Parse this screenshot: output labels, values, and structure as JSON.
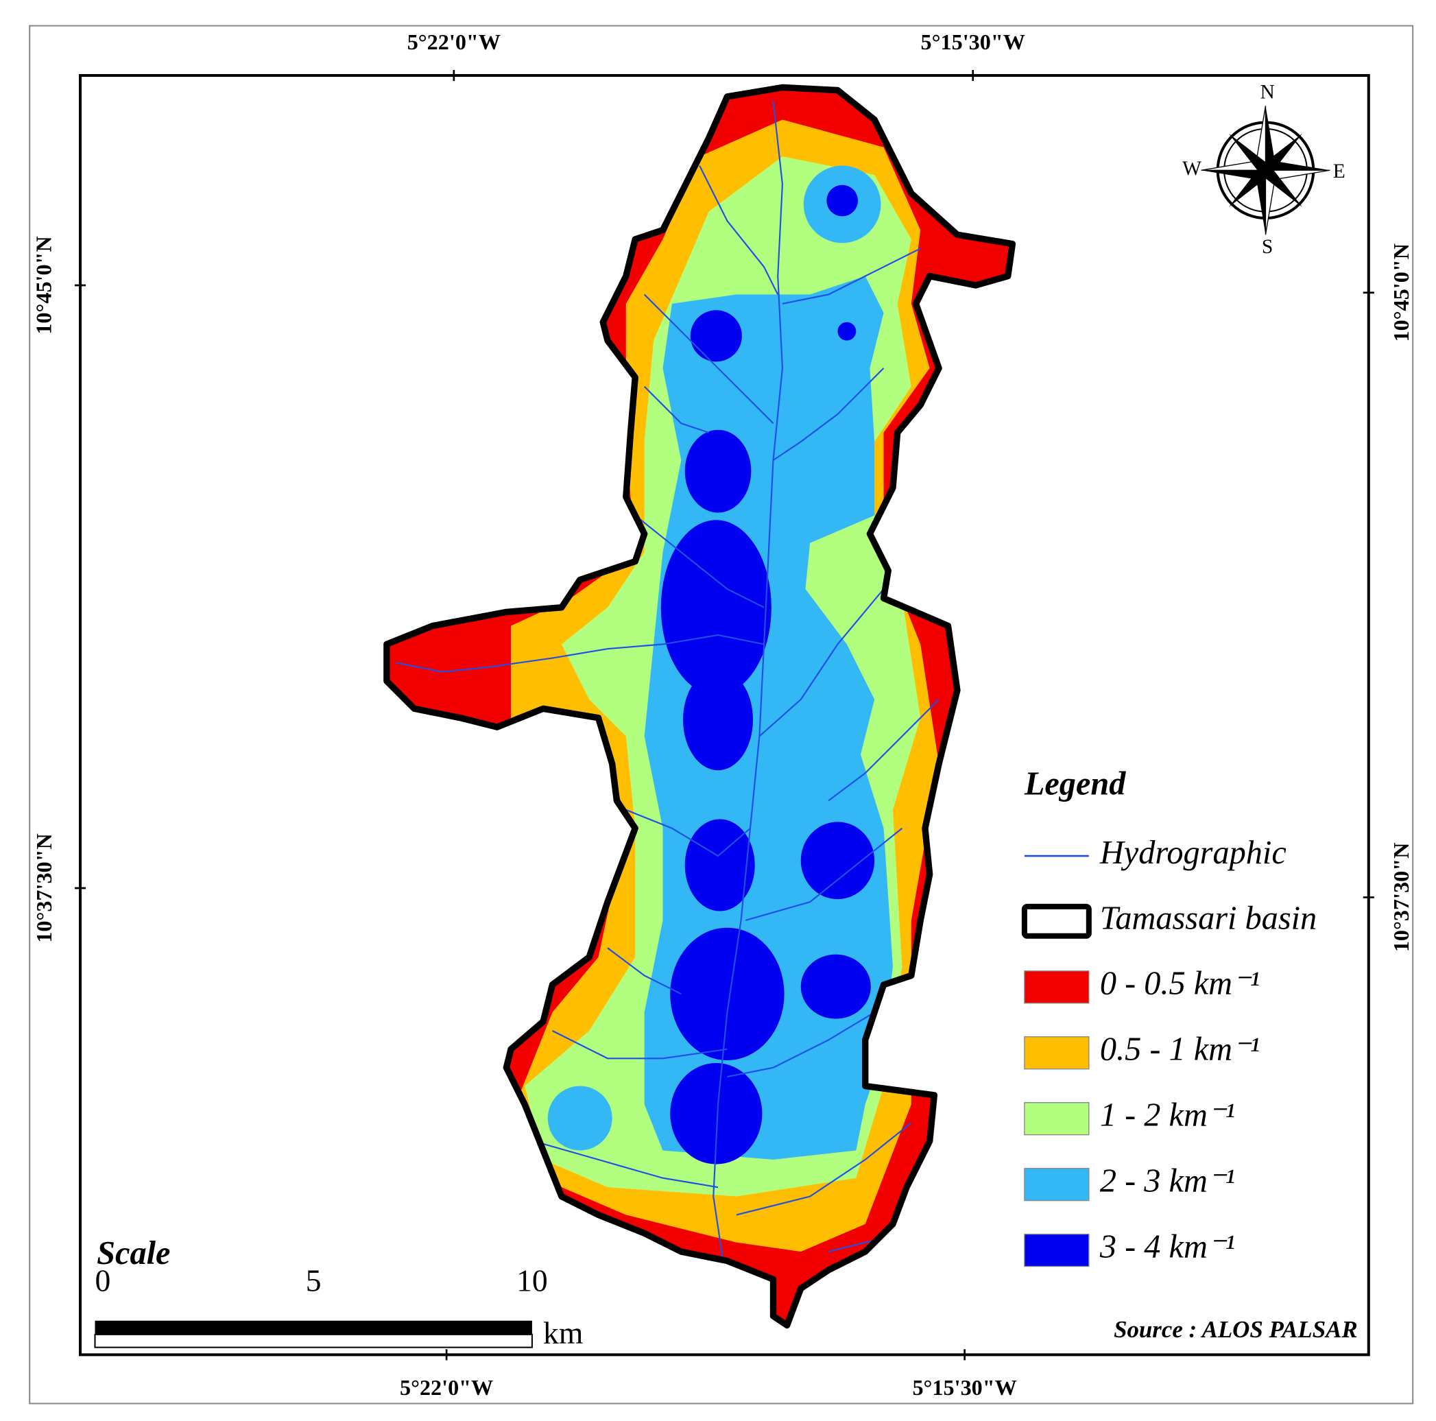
{
  "map": {
    "top_labels": [
      "5°22'0\"W",
      "5°15'30\"W"
    ],
    "bottom_labels": [
      "5°22'0\"W",
      "5°15'30\"W"
    ],
    "left_labels": [
      "10°45'0\"N",
      "10°37'30\"N"
    ],
    "right_labels": [
      "10°45'0\"N",
      "10°37'30\"N"
    ],
    "compass": {
      "n": "N",
      "s": "S",
      "w": "W",
      "e": "E"
    },
    "legend": {
      "title": "Legend",
      "line": {
        "label": "Hydrographic",
        "color": "#1f4fe6"
      },
      "outline": {
        "label": "Tamassari basin"
      },
      "classes": [
        {
          "label": "0 - 0.5 km⁻¹",
          "color": "#f20000"
        },
        {
          "label": "0.5 - 1 km⁻¹",
          "color": "#ffbf00"
        },
        {
          "label": "1 - 2 km⁻¹",
          "color": "#b2ff7f"
        },
        {
          "label": "2 - 3 km⁻¹",
          "color": "#33b8f5"
        },
        {
          "label": "3 - 4 km⁻¹",
          "color": "#0000f0"
        }
      ]
    },
    "scale": {
      "title": "Scale",
      "ticks": [
        0,
        5,
        10
      ],
      "unit": "km"
    },
    "source": "Source : ALOS PALSAR"
  }
}
